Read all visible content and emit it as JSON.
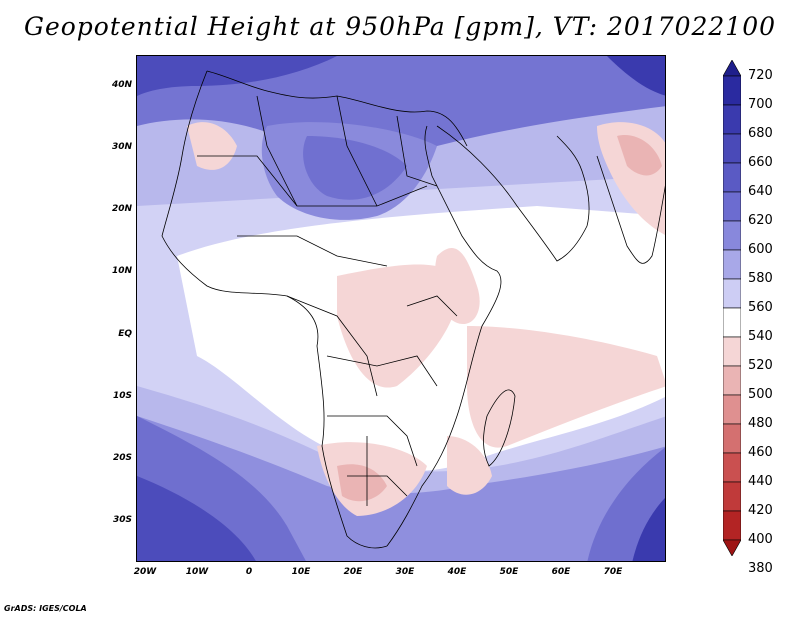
{
  "title": "Geopotential Height at 950hPa [gpm], VT: 2017022100",
  "y_axis_labels": [
    "40N",
    "30N",
    "20N",
    "10N",
    "EQ",
    "10S",
    "20S",
    "30S"
  ],
  "x_axis_labels": [
    "20W",
    "10W",
    "0",
    "10E",
    "20E",
    "30E",
    "40E",
    "50E",
    "60E",
    "70E"
  ],
  "colorbar": {
    "levels": [
      "720",
      "700",
      "680",
      "660",
      "640",
      "620",
      "600",
      "580",
      "560",
      "540",
      "520",
      "500",
      "480",
      "460",
      "440",
      "420",
      "400",
      "380"
    ],
    "colors": [
      "#1f1f8c",
      "#2a2aa0",
      "#3a3aae",
      "#4a4ab8",
      "#5a5ac4",
      "#6c6cd0",
      "#8888dc",
      "#a8a8e8",
      "#cdcdf4",
      "#ffffff",
      "#f5d6d6",
      "#eab4b4",
      "#df9090",
      "#d47070",
      "#ca5050",
      "#c03a3a",
      "#b32424",
      "#9e1414"
    ]
  },
  "footer": "GrADS: IGES/COLA"
}
